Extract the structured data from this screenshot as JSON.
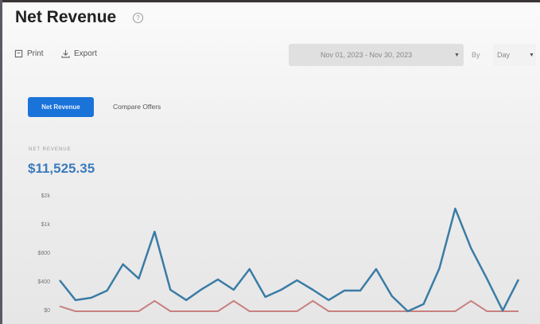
{
  "header": {
    "title": "Net Revenue",
    "help_icon": "question-circle-icon"
  },
  "toolbar": {
    "print_label": "Print",
    "export_label": "Export"
  },
  "filters": {
    "date_range": "Nov 01, 2023 - Nov 30, 2023",
    "by_label": "By",
    "granularity": "Day"
  },
  "tabs": {
    "active": "Net Revenue",
    "other": "Compare Offers"
  },
  "metric": {
    "label": "NET REVENUE",
    "value": "$11,525.35"
  },
  "colors": {
    "primary": "#1a73d9",
    "series_main": "#3a7ca5",
    "series_secondary": "#c98080"
  },
  "chart_data": {
    "type": "line",
    "x": [
      1,
      2,
      3,
      4,
      5,
      6,
      7,
      8,
      9,
      10,
      11,
      12,
      13,
      14,
      15,
      16,
      17,
      18,
      19,
      20,
      21,
      22,
      23,
      24,
      25,
      26,
      27,
      28,
      29,
      30
    ],
    "y_ticks": [
      "$0",
      "$400",
      "$800",
      "$1k",
      "$2k"
    ],
    "ylim": [
      0,
      1600
    ],
    "grid": false,
    "series": [
      {
        "values": [
          433,
          156,
          189,
          289,
          656,
          456,
          1111,
          300,
          156,
          311,
          444,
          300,
          589,
          200,
          300,
          433,
          300,
          156,
          289,
          289,
          589,
          211,
          0,
          100,
          600,
          1433,
          880,
          456,
          10,
          444
        ]
      },
      {
        "values": [
          70,
          0,
          0,
          0,
          0,
          0,
          145,
          0,
          0,
          0,
          0,
          145,
          0,
          0,
          0,
          0,
          145,
          0,
          0,
          0,
          0,
          0,
          0,
          0,
          0,
          0,
          145,
          0,
          0,
          0
        ]
      }
    ]
  }
}
